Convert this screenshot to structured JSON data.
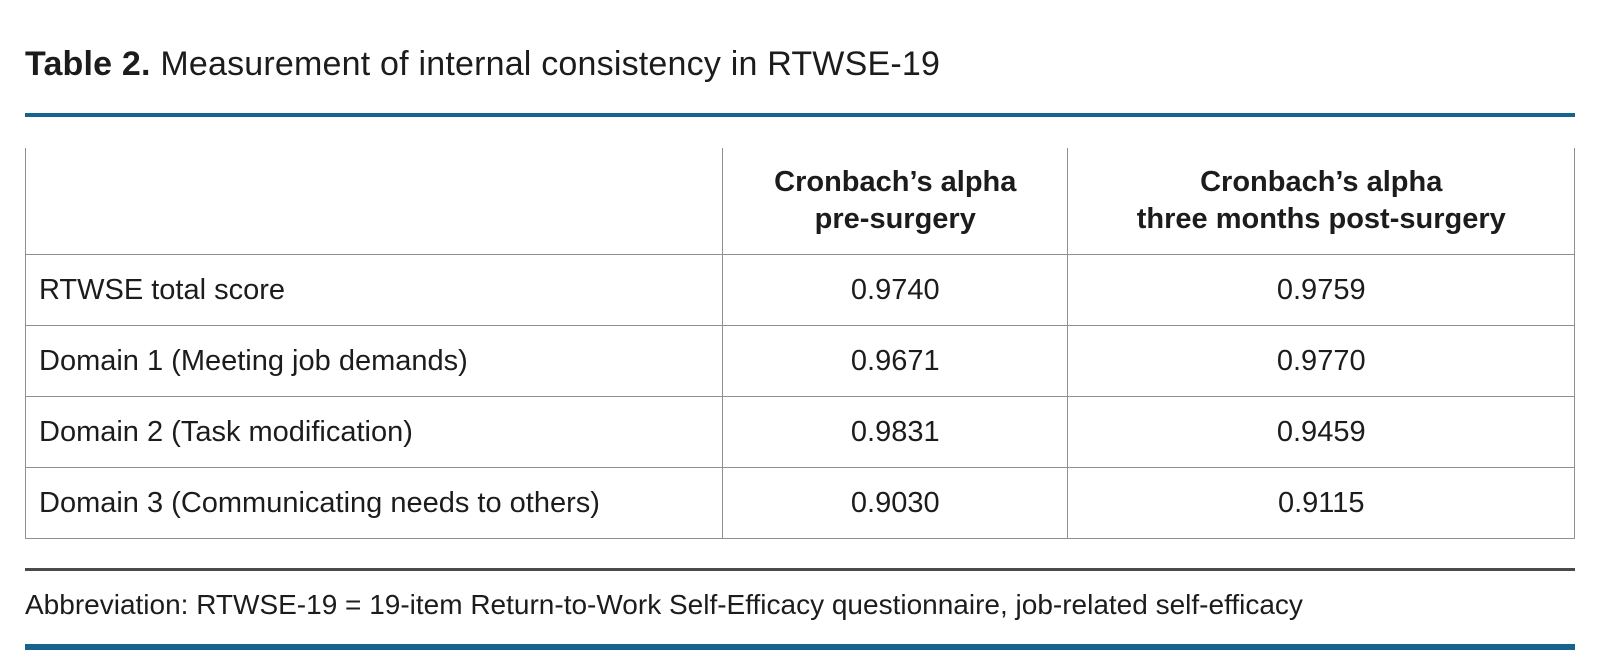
{
  "page": {
    "title_bold": "Table 2.",
    "title_rest": " Measurement of internal consistency in RTWSE-19"
  },
  "table": {
    "header": {
      "col1": "",
      "col2_line1": "Cronbach’s alpha",
      "col2_line2": "pre-surgery",
      "col3_line1": "Cronbach’s alpha",
      "col3_line2": "three months post-surgery"
    },
    "rows": [
      {
        "label": "RTWSE total score",
        "pre": "0.9740",
        "post": "0.9759"
      },
      {
        "label": "Domain 1 (Meeting job demands)",
        "pre": "0.9671",
        "post": "0.9770"
      },
      {
        "label": "Domain 2 (Task modification)",
        "pre": "0.9831",
        "post": "0.9459"
      },
      {
        "label": "Domain 3 (Communicating needs to others)",
        "pre": "0.9030",
        "post": "0.9115"
      }
    ]
  },
  "footnote": "Abbreviation: RTWSE-19 = 19-item Return-to-Work Self-Efficacy questionnaire, job-related self-efficacy",
  "colors": {
    "accent_rule": "#16648e",
    "dark_rule": "#4a4a4a",
    "table_border": "#909090",
    "text": "#1c1c1c",
    "background": "#ffffff"
  }
}
